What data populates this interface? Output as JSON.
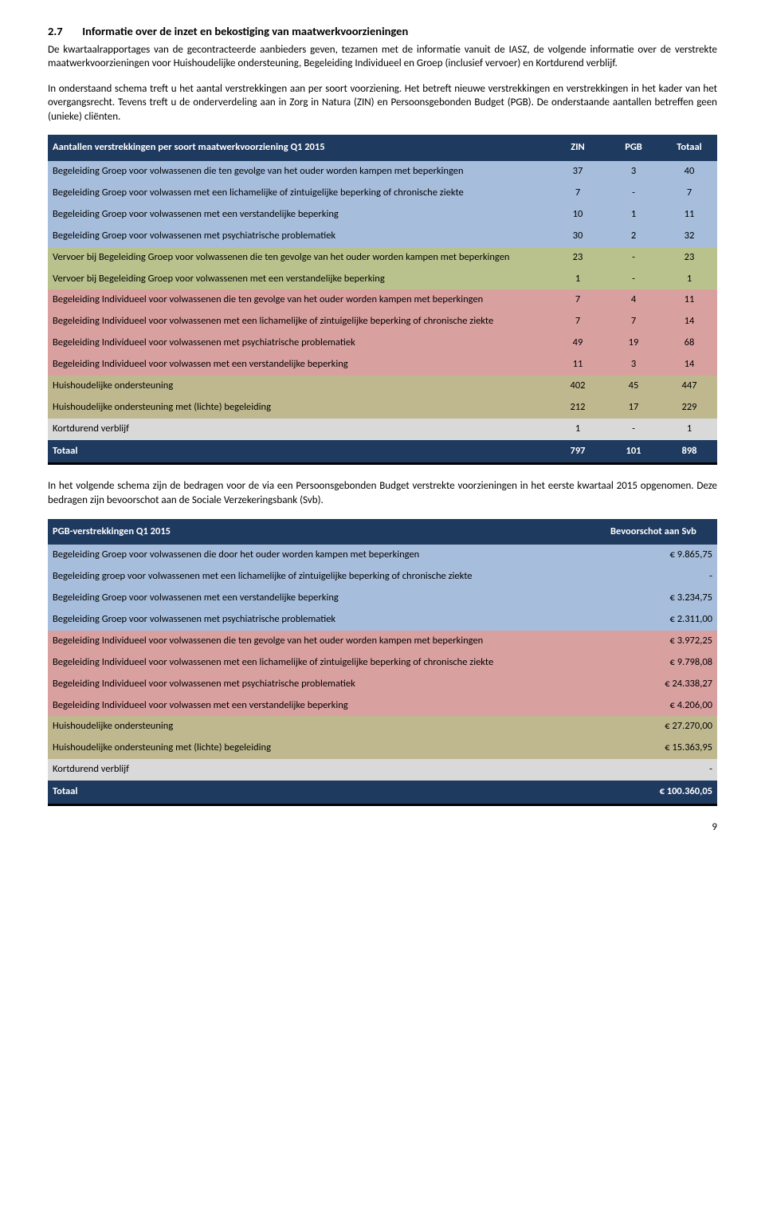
{
  "heading": {
    "number": "2.7",
    "title": "Informatie over de inzet en bekostiging van maatwerkvoorzieningen"
  },
  "para1": "De kwartaalrapportages van de gecontracteerde aanbieders geven, tezamen met de informatie vanuit de IASZ, de volgende informatie over de verstrekte maatwerkvoorzieningen voor Huishoudelijke ondersteuning, Begeleiding Individueel en Groep (inclusief vervoer) en Kortdurend verblijf.",
  "para2": "In onderstaand schema treft u het aantal verstrekkingen aan per soort voorziening. Het betreft nieuwe verstrekkingen en verstrekkingen in het kader van het overgangsrecht. Tevens treft u de onderverdeling aan in Zorg in Natura (ZIN) en Persoonsgebonden Budget (PGB). De onderstaande aantallen betreffen geen (unieke) cliënten.",
  "table1": {
    "title": "Aantallen verstrekkingen per soort  maatwerkvoorziening Q1 2015",
    "cols": [
      "ZIN",
      "PGB",
      "Totaal"
    ],
    "rows": [
      {
        "label": "Begeleiding Groep voor volwassenen die ten gevolge van het ouder worden kampen met beperkingen",
        "zin": "37",
        "pgb": "3",
        "tot": "40",
        "bg": "#a6bddb"
      },
      {
        "label": "Begeleiding Groep voor volwassen met een lichamelijke of zintuigelijke beperking of chronische ziekte",
        "zin": "7",
        "pgb": "-",
        "tot": "7",
        "bg": "#a6bddb"
      },
      {
        "label": "Begeleiding Groep voor volwassenen met een verstandelijke beperking",
        "zin": "10",
        "pgb": "1",
        "tot": "11",
        "bg": "#a6bddb"
      },
      {
        "label": "Begeleiding Groep voor volwassenen met psychiatrische problematiek",
        "zin": "30",
        "pgb": "2",
        "tot": "32",
        "bg": "#a6bddb"
      },
      {
        "label": "Vervoer bij Begeleiding Groep voor volwassenen die ten gevolge van het ouder worden kampen met beperkingen",
        "zin": "23",
        "pgb": "-",
        "tot": "23",
        "bg": "#b9c28d"
      },
      {
        "label": "Vervoer bij Begeleiding Groep voor volwassenen met een verstandelijke beperking",
        "zin": "1",
        "pgb": "-",
        "tot": "1",
        "bg": "#b9c28d"
      },
      {
        "label": "Begeleiding Individueel voor volwassenen die ten gevolge van het ouder worden kampen met beperkingen",
        "zin": "7",
        "pgb": "4",
        "tot": "11",
        "bg": "#d9a0a0"
      },
      {
        "label": "Begeleiding Individueel voor volwassenen met een lichamelijke of zintuigelijke beperking of chronische ziekte",
        "zin": "7",
        "pgb": "7",
        "tot": "14",
        "bg": "#d9a0a0"
      },
      {
        "label": "Begeleiding Individueel voor volwassenen met psychiatrische problematiek",
        "zin": "49",
        "pgb": "19",
        "tot": "68",
        "bg": "#d9a0a0"
      },
      {
        "label": "Begeleiding Individueel voor volwassen met een verstandelijke beperking",
        "zin": "11",
        "pgb": "3",
        "tot": "14",
        "bg": "#d9a0a0"
      },
      {
        "label": "Huishoudelijke ondersteuning",
        "zin": "402",
        "pgb": "45",
        "tot": "447",
        "bg": "#bfb88f"
      },
      {
        "label": "Huishoudelijke ondersteuning met (lichte) begeleiding",
        "zin": "212",
        "pgb": "17",
        "tot": "229",
        "bg": "#bfb88f"
      },
      {
        "label": "Kortdurend verblijf",
        "zin": "1",
        "pgb": "-",
        "tot": "1",
        "bg": "#d9d9d9"
      }
    ],
    "total": {
      "label": "Totaal",
      "zin": "797",
      "pgb": "101",
      "tot": "898"
    }
  },
  "para3": "In het volgende schema zijn de bedragen voor de via een Persoonsgebonden Budget verstrekte voorzieningen in het eerste kwartaal 2015 opgenomen. Deze bedragen zijn bevoorschot aan de Sociale Verzekeringsbank (Svb).",
  "table2": {
    "title": "PGB-verstrekkingen  Q1 2015",
    "col": "Bevoorschot aan Svb",
    "rows": [
      {
        "label": "Begeleiding Groep voor volwassenen die door het ouder worden kampen met beperkingen",
        "amt": "€    9.865,75",
        "bg": "#a6bddb"
      },
      {
        "label": "Begeleiding groep voor volwassenen met  een lichamelijke of zintuigelijke beperking of chronische ziekte",
        "amt": "-",
        "bg": "#a6bddb"
      },
      {
        "label": "Begeleiding Groep voor volwassenen met een verstandelijke beperking",
        "amt": "€    3.234,75",
        "bg": "#a6bddb"
      },
      {
        "label": "Begeleiding Groep voor volwassenen met psychiatrische problematiek",
        "amt": "€    2.311,00",
        "bg": "#a6bddb"
      },
      {
        "label": "Begeleiding Individueel voor volwassenen die ten gevolge van het ouder worden kampen met beperkingen",
        "amt": "€    3.972,25",
        "bg": "#d9a0a0"
      },
      {
        "label": "Begeleiding Individueel voor volwassenen met een lichamelijke of zintuigelijke beperking of chronische ziekte",
        "amt": "€    9.798,08",
        "bg": "#d9a0a0"
      },
      {
        "label": "Begeleiding Individueel voor volwassenen met psychiatrische problematiek",
        "amt": "€  24.338,27",
        "bg": "#d9a0a0"
      },
      {
        "label": "Begeleiding Individueel voor volwassen met een verstandelijke beperking",
        "amt": "€    4.206,00",
        "bg": "#d9a0a0"
      },
      {
        "label": "Huishoudelijke ondersteuning",
        "amt": "€  27.270,00",
        "bg": "#bfb88f"
      },
      {
        "label": "Huishoudelijke ondersteuning met (lichte) begeleiding",
        "amt": "€  15.363,95",
        "bg": "#bfb88f"
      },
      {
        "label": "Kortdurend verblijf",
        "amt": "-",
        "bg": "#d9d9d9"
      }
    ],
    "total": {
      "label": "Totaal",
      "amt": "€ 100.360,05"
    }
  },
  "page_number": "9",
  "colors": {
    "header_bg": "#1f3a5f",
    "blue": "#a6bddb",
    "olive": "#b9c28d",
    "pink": "#d9a0a0",
    "tan": "#bfb88f",
    "gray": "#d9d9d9"
  }
}
